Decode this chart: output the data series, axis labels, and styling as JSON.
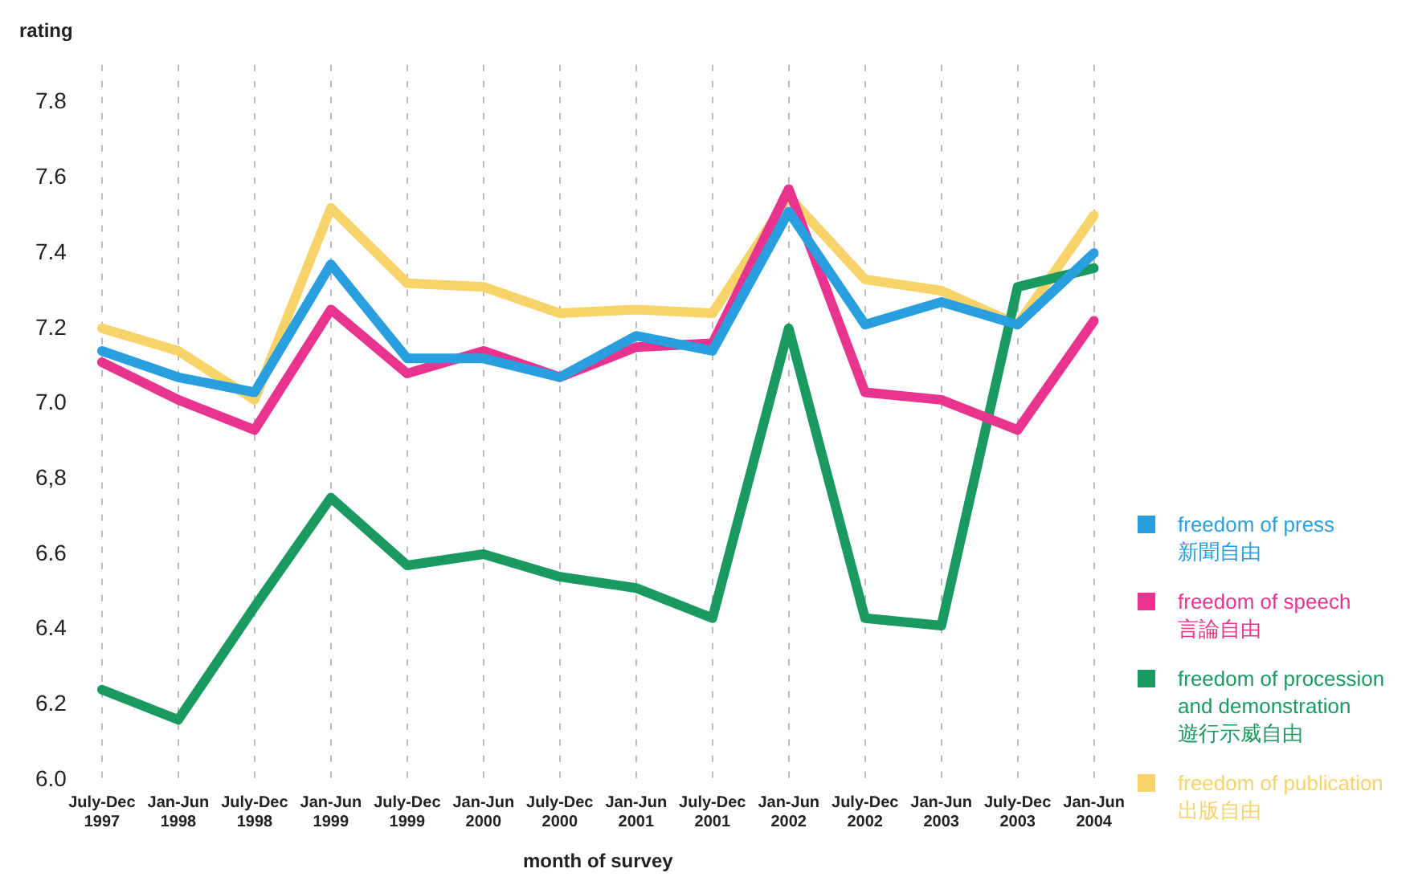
{
  "chart_data": {
    "type": "line",
    "xlabel": "month of survey",
    "ylabel": "rating",
    "categories": [
      "July-Dec 1997",
      "Jan-Jun 1998",
      "July-Dec 1998",
      "Jan-Jun 1999",
      "July-Dec 1999",
      "Jan-Jun 2000",
      "July-Dec 2000",
      "Jan-Jun 2001",
      "July-Dec 2001",
      "Jan-Jun 2002",
      "July-Dec 2002",
      "Jan-Jun 2003",
      "July-Dec 2003",
      "Jan-Jun 2004"
    ],
    "ylim": [
      6.0,
      7.9
    ],
    "yticks": [
      {
        "value": 6.0,
        "label": "6.0"
      },
      {
        "value": 6.2,
        "label": "6.2"
      },
      {
        "value": 6.4,
        "label": "6.4"
      },
      {
        "value": 6.6,
        "label": "6.6"
      },
      {
        "value": 6.8,
        "label": "6,8"
      },
      {
        "value": 7.0,
        "label": "7.0"
      },
      {
        "value": 7.2,
        "label": "7.2"
      },
      {
        "value": 7.4,
        "label": "7.4"
      },
      {
        "value": 7.6,
        "label": "7.6"
      },
      {
        "value": 7.8,
        "label": "7.8"
      }
    ],
    "grid": "x",
    "legend": "right",
    "marker": "none",
    "line_style": "solid",
    "series": [
      {
        "name": "freedom of press\n新聞自由",
        "color": "#2a9fe0",
        "values": [
          7.14,
          7.07,
          7.03,
          7.37,
          7.12,
          7.12,
          7.07,
          7.18,
          7.14,
          7.51,
          7.21,
          7.27,
          7.21,
          7.4
        ]
      },
      {
        "name": "freedom of speech\n言論自由",
        "color": "#e8348f",
        "values": [
          7.11,
          7.01,
          6.93,
          7.25,
          7.08,
          7.14,
          7.07,
          7.15,
          7.16,
          7.57,
          7.03,
          7.01,
          6.93,
          7.22
        ]
      },
      {
        "name": "freedom of procession\nand demonstration\n遊行示威自由",
        "color": "#1a9a60",
        "values": [
          6.24,
          6.16,
          6.46,
          6.75,
          6.57,
          6.6,
          6.54,
          6.51,
          6.43,
          7.2,
          6.43,
          6.41,
          7.31,
          7.36
        ]
      },
      {
        "name": "freedom of publication\n出版自由",
        "color": "#f8d36a",
        "values": [
          7.2,
          7.14,
          7.01,
          7.52,
          7.32,
          7.31,
          7.24,
          7.25,
          7.24,
          7.55,
          7.33,
          7.3,
          7.21,
          7.5
        ]
      }
    ]
  }
}
